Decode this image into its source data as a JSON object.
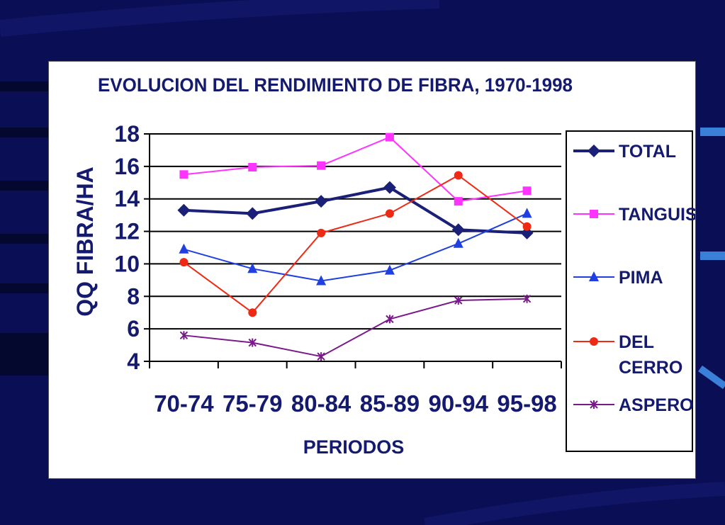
{
  "colors": {
    "background": "#0a0f55",
    "total": "#1a1f78",
    "tanguis": "#ff33ff",
    "pima": "#1f3fe0",
    "del_cerro": "#ee2a14",
    "aspero": "#7a1a8a",
    "text": "#141a6e"
  },
  "chart_data": {
    "type": "line",
    "title": "EVOLUCION DEL RENDIMIENTO DE FIBRA, 1970-1998",
    "xlabel": "PERIODOS",
    "ylabel": "QQ FIBRA/HA",
    "categories": [
      "70-74",
      "75-79",
      "80-84",
      "85-89",
      "90-94",
      "95-98"
    ],
    "ylim": [
      4,
      18
    ],
    "yticks": [
      4,
      6,
      8,
      10,
      12,
      14,
      16,
      18
    ],
    "grid": true,
    "legend_position": "right",
    "series": [
      {
        "name": "TOTAL",
        "marker": "diamond",
        "color": "#1a1f78",
        "values": [
          13.3,
          13.1,
          13.85,
          14.7,
          12.1,
          11.9
        ]
      },
      {
        "name": "TANGUIS",
        "marker": "square",
        "color": "#ff33ff",
        "values": [
          15.5,
          15.95,
          16.05,
          17.8,
          13.85,
          14.5
        ]
      },
      {
        "name": "PIMA",
        "marker": "triangle",
        "color": "#1f3fe0",
        "values": [
          10.9,
          9.7,
          8.95,
          9.6,
          11.25,
          13.1
        ]
      },
      {
        "name": "DEL CERRO",
        "marker": "circle",
        "color": "#ee2a14",
        "values": [
          10.1,
          7.0,
          11.9,
          13.1,
          15.45,
          12.3
        ]
      },
      {
        "name": "ASPERO",
        "marker": "asterisk",
        "color": "#7a1a8a",
        "values": [
          5.6,
          5.15,
          4.3,
          6.6,
          7.75,
          7.85
        ]
      }
    ]
  }
}
